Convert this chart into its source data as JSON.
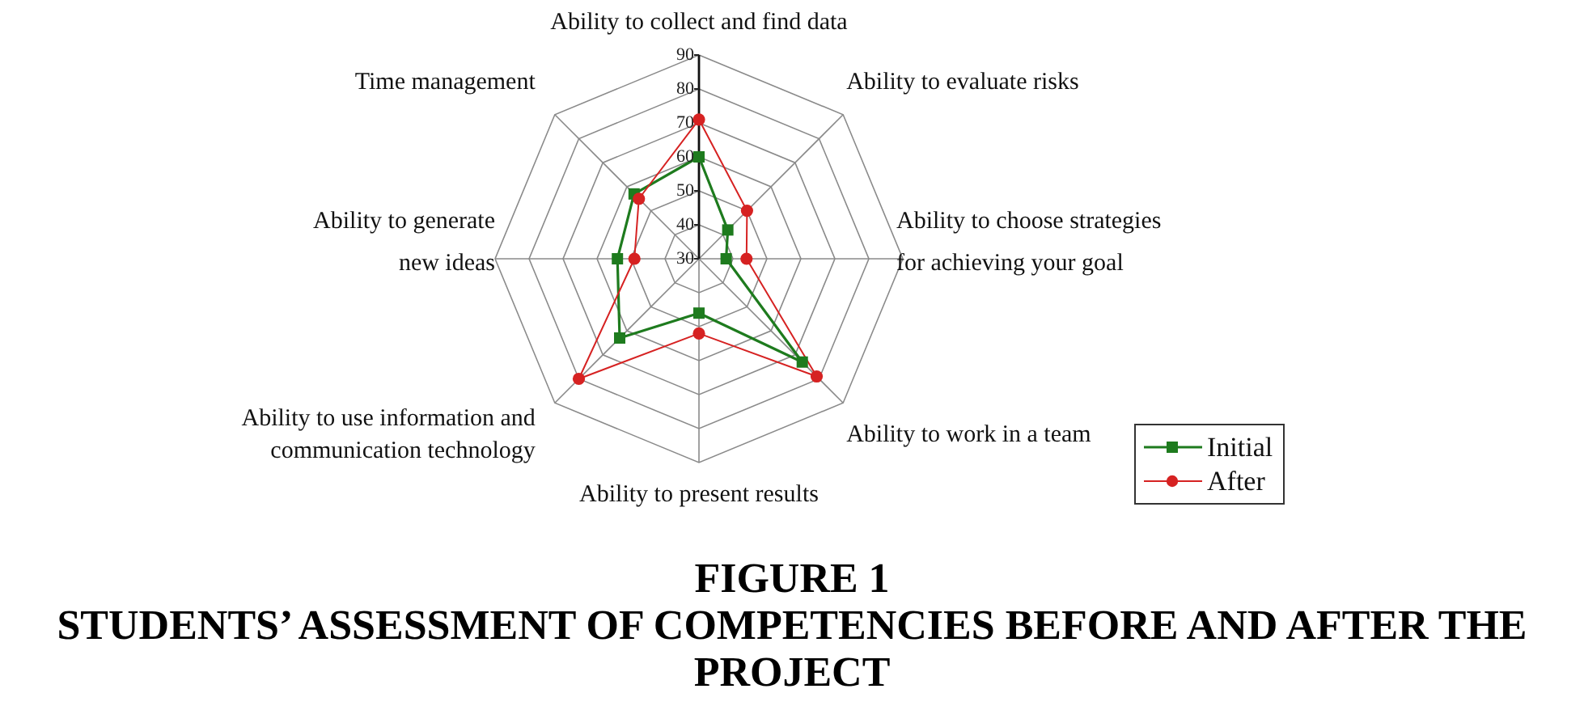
{
  "chart_data": {
    "type": "radar",
    "title": "FIGURE 1",
    "subtitle": "STUDENTS’ ASSESSMENT OF COMPETENCIES BEFORE AND AFTER THE PROJECT",
    "categories": [
      "Ability to collect and find data",
      "Ability to evaluate risks",
      "Ability to choose strategies for achieving your goal",
      "Ability to work in a team",
      "Ability to present results",
      "Ability to use information and communication technology",
      "Ability to generate new ideas",
      "Time management"
    ],
    "series": [
      {
        "name": "Initial",
        "color": "#1e7b1e",
        "marker": "square",
        "values": [
          60,
          42,
          38,
          73,
          46,
          63,
          54,
          57
        ]
      },
      {
        "name": "After",
        "color": "#d62222",
        "marker": "circle",
        "values": [
          71,
          50,
          44,
          79,
          52,
          80,
          49,
          55
        ]
      }
    ],
    "ylim": [
      30,
      90
    ],
    "yticks": [
      30,
      40,
      50,
      60,
      70,
      80,
      90
    ],
    "grid": true,
    "legend": "bottom right"
  }
}
